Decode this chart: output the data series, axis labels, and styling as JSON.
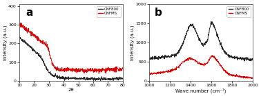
{
  "panel_a": {
    "label": "a",
    "xlabel": "2θ",
    "ylabel": "Intensity (a.u.)",
    "xlim": [
      10,
      80
    ],
    "ylim": [
      0,
      410
    ],
    "xticks": [
      10,
      20,
      30,
      40,
      50,
      60,
      70,
      80
    ],
    "yticks": [
      0,
      100,
      200,
      300,
      400
    ],
    "legend": [
      "CNF800",
      "CNFMS"
    ],
    "colors": [
      "#222222",
      "#dd0000"
    ],
    "CNF800": {
      "profile": [
        [
          10,
          230
        ],
        [
          11,
          225
        ],
        [
          12,
          218
        ],
        [
          13,
          212
        ],
        [
          14,
          208
        ],
        [
          15,
          200
        ],
        [
          16,
          192
        ],
        [
          17,
          185
        ],
        [
          18,
          178
        ],
        [
          19,
          170
        ],
        [
          20,
          162
        ],
        [
          21,
          155
        ],
        [
          22,
          148
        ],
        [
          23,
          140
        ],
        [
          24,
          132
        ],
        [
          25,
          122
        ],
        [
          26,
          108
        ],
        [
          27,
          90
        ],
        [
          28,
          72
        ],
        [
          29,
          58
        ],
        [
          30,
          46
        ],
        [
          31,
          38
        ],
        [
          32,
          32
        ],
        [
          33,
          28
        ],
        [
          34,
          25
        ],
        [
          35,
          22
        ],
        [
          36,
          20
        ],
        [
          37,
          18
        ],
        [
          38,
          17
        ],
        [
          39,
          16
        ],
        [
          40,
          15
        ],
        [
          45,
          13
        ],
        [
          50,
          12
        ],
        [
          55,
          11
        ],
        [
          60,
          10
        ],
        [
          65,
          10
        ],
        [
          70,
          10
        ],
        [
          75,
          11
        ],
        [
          80,
          13
        ]
      ]
    },
    "CNFMS": {
      "profile": [
        [
          10,
          302
        ],
        [
          11,
          297
        ],
        [
          12,
          292
        ],
        [
          13,
          286
        ],
        [
          14,
          280
        ],
        [
          15,
          274
        ],
        [
          16,
          268
        ],
        [
          17,
          262
        ],
        [
          18,
          256
        ],
        [
          19,
          250
        ],
        [
          20,
          244
        ],
        [
          21,
          238
        ],
        [
          22,
          230
        ],
        [
          23,
          222
        ],
        [
          24,
          215
        ],
        [
          25,
          210
        ],
        [
          26,
          207
        ],
        [
          27,
          203
        ],
        [
          28,
          195
        ],
        [
          29,
          180
        ],
        [
          30,
          160
        ],
        [
          31,
          130
        ],
        [
          32,
          100
        ],
        [
          33,
          82
        ],
        [
          34,
          70
        ],
        [
          35,
          63
        ],
        [
          36,
          60
        ],
        [
          37,
          58
        ],
        [
          38,
          57
        ],
        [
          39,
          57
        ],
        [
          40,
          57
        ],
        [
          45,
          56
        ],
        [
          50,
          56
        ],
        [
          55,
          55
        ],
        [
          60,
          55
        ],
        [
          65,
          56
        ],
        [
          70,
          57
        ],
        [
          75,
          60
        ],
        [
          80,
          63
        ]
      ]
    },
    "noise_cnf800": 4,
    "noise_cnfms": 6
  },
  "panel_b": {
    "label": "b",
    "xlabel": "Wave number (cm⁻¹)",
    "ylabel": "Intensity (a.u.)",
    "xlim": [
      1000,
      2000
    ],
    "ylim": [
      0,
      2000
    ],
    "xticks": [
      1000,
      1200,
      1400,
      1600,
      1800,
      2000
    ],
    "yticks": [
      0,
      500,
      1000,
      1500,
      2000
    ],
    "legend": [
      "CNF800",
      "CNFMS"
    ],
    "colors": [
      "#222222",
      "#dd0000"
    ],
    "CNF800": {
      "profile": [
        [
          1000,
          580
        ],
        [
          1050,
          590
        ],
        [
          1100,
          605
        ],
        [
          1150,
          620
        ],
        [
          1200,
          640
        ],
        [
          1250,
          680
        ],
        [
          1280,
          740
        ],
        [
          1300,
          820
        ],
        [
          1320,
          940
        ],
        [
          1340,
          1080
        ],
        [
          1360,
          1230
        ],
        [
          1380,
          1390
        ],
        [
          1400,
          1460
        ],
        [
          1420,
          1440
        ],
        [
          1440,
          1360
        ],
        [
          1460,
          1230
        ],
        [
          1480,
          1090
        ],
        [
          1500,
          980
        ],
        [
          1520,
          940
        ],
        [
          1540,
          960
        ],
        [
          1560,
          1060
        ],
        [
          1570,
          1160
        ],
        [
          1580,
          1300
        ],
        [
          1590,
          1460
        ],
        [
          1600,
          1530
        ],
        [
          1610,
          1520
        ],
        [
          1620,
          1470
        ],
        [
          1640,
          1340
        ],
        [
          1660,
          1180
        ],
        [
          1680,
          1020
        ],
        [
          1700,
          880
        ],
        [
          1720,
          780
        ],
        [
          1740,
          710
        ],
        [
          1760,
          665
        ],
        [
          1780,
          635
        ],
        [
          1800,
          615
        ],
        [
          1850,
          590
        ],
        [
          1900,
          575
        ],
        [
          1950,
          565
        ],
        [
          2000,
          555
        ]
      ]
    },
    "CNFMS": {
      "profile": [
        [
          1000,
          185
        ],
        [
          1050,
          195
        ],
        [
          1100,
          210
        ],
        [
          1150,
          230
        ],
        [
          1200,
          255
        ],
        [
          1250,
          300
        ],
        [
          1280,
          360
        ],
        [
          1300,
          420
        ],
        [
          1320,
          475
        ],
        [
          1340,
          520
        ],
        [
          1360,
          555
        ],
        [
          1380,
          575
        ],
        [
          1400,
          580
        ],
        [
          1420,
          565
        ],
        [
          1440,
          535
        ],
        [
          1460,
          498
        ],
        [
          1480,
          462
        ],
        [
          1500,
          435
        ],
        [
          1520,
          420
        ],
        [
          1540,
          428
        ],
        [
          1560,
          462
        ],
        [
          1570,
          505
        ],
        [
          1580,
          555
        ],
        [
          1590,
          600
        ],
        [
          1600,
          635
        ],
        [
          1610,
          645
        ],
        [
          1620,
          630
        ],
        [
          1640,
          580
        ],
        [
          1660,
          510
        ],
        [
          1680,
          432
        ],
        [
          1700,
          360
        ],
        [
          1720,
          290
        ],
        [
          1740,
          235
        ],
        [
          1760,
          195
        ],
        [
          1780,
          165
        ],
        [
          1800,
          145
        ],
        [
          1850,
          118
        ],
        [
          1900,
          100
        ],
        [
          1950,
          88
        ],
        [
          2000,
          80
        ]
      ]
    },
    "noise_cnf800": 22,
    "noise_cnfms": 15
  },
  "fig_bg": "#ffffff",
  "panel_bg": "#ffffff",
  "border_color": "#888888"
}
